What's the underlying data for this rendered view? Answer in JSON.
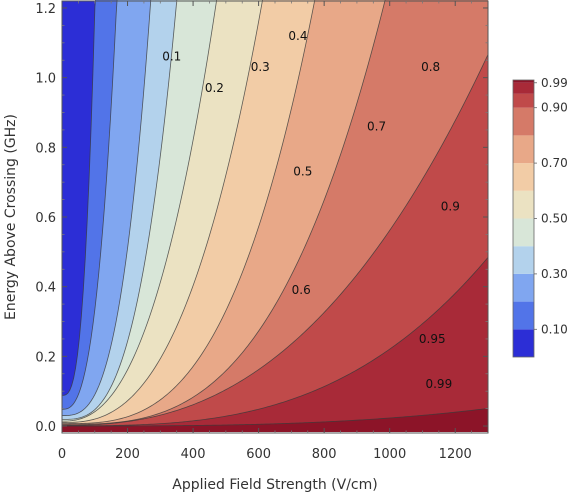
{
  "chart_data": {
    "type": "contour",
    "xlabel": "Applied Field Strength (V/cm)",
    "ylabel": "Energy Above Crossing (GHz)",
    "xlim": [
      0,
      1300
    ],
    "ylim": [
      -0.02,
      1.22
    ],
    "x_ticks": [
      0,
      200,
      400,
      600,
      800,
      1000,
      1200
    ],
    "x_tick_labels": [
      "0",
      "200",
      "400",
      "600",
      "800",
      "1000",
      "1200"
    ],
    "y_ticks": [
      0.0,
      0.2,
      0.4,
      0.6,
      0.8,
      1.0,
      1.2
    ],
    "y_tick_labels": [
      "0.0",
      "0.2",
      "0.4",
      "0.6",
      "0.8",
      "1.0",
      "1.2"
    ],
    "contour_levels": [
      0.1,
      0.2,
      0.3,
      0.4,
      0.5,
      0.6,
      0.7,
      0.8,
      0.9,
      0.95,
      0.99
    ],
    "contour_labels": [
      {
        "text": "0.1",
        "x": 335,
        "y": 1.06
      },
      {
        "text": "0.2",
        "x": 465,
        "y": 0.97
      },
      {
        "text": "0.3",
        "x": 605,
        "y": 1.03
      },
      {
        "text": "0.4",
        "x": 720,
        "y": 1.12
      },
      {
        "text": "0.5",
        "x": 735,
        "y": 0.73
      },
      {
        "text": "0.6",
        "x": 730,
        "y": 0.39
      },
      {
        "text": "0.7",
        "x": 960,
        "y": 0.86
      },
      {
        "text": "0.8",
        "x": 1125,
        "y": 1.03
      },
      {
        "text": "0.9",
        "x": 1185,
        "y": 0.63
      },
      {
        "text": "0.95",
        "x": 1130,
        "y": 0.25
      },
      {
        "text": "0.99",
        "x": 1150,
        "y": 0.12
      }
    ],
    "legend": {
      "placement": "right",
      "labels": [
        "0.99",
        "0.90",
        "0.70",
        "0.50",
        "0.30",
        "0.10"
      ],
      "label_values": [
        0.99,
        0.9,
        0.7,
        0.5,
        0.3,
        0.1
      ],
      "bands": [
        {
          "from": 0.0,
          "to": 0.1,
          "color": "#2c2ed6"
        },
        {
          "from": 0.1,
          "to": 0.2,
          "color": "#5274e8"
        },
        {
          "from": 0.2,
          "to": 0.3,
          "color": "#80a6f0"
        },
        {
          "from": 0.3,
          "to": 0.4,
          "color": "#b3d2ec"
        },
        {
          "from": 0.4,
          "to": 0.5,
          "color": "#d8e6d8"
        },
        {
          "from": 0.5,
          "to": 0.6,
          "color": "#ebe2c2"
        },
        {
          "from": 0.6,
          "to": 0.7,
          "color": "#f2cca6"
        },
        {
          "from": 0.7,
          "to": 0.8,
          "color": "#e8a888"
        },
        {
          "from": 0.8,
          "to": 0.9,
          "color": "#d57a68"
        },
        {
          "from": 0.9,
          "to": 0.95,
          "color": "#c04a4a"
        },
        {
          "from": 0.95,
          "to": 0.99,
          "color": "#a82a38"
        },
        {
          "from": 0.99,
          "to": 1.0,
          "color": "#8c1428"
        }
      ]
    },
    "grid": false
  }
}
